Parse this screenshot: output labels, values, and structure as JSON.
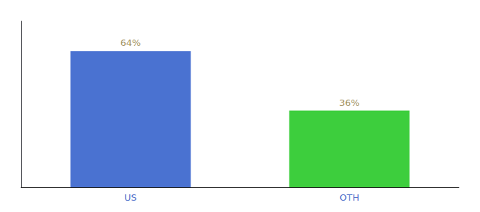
{
  "chart_data": {
    "type": "bar",
    "categories": [
      "US",
      "OTH"
    ],
    "values": [
      64,
      36
    ],
    "colors": [
      "#4a72d1",
      "#3dce3d"
    ],
    "value_labels": [
      "64%",
      "36%"
    ],
    "data_labels": true,
    "ylim": [
      0,
      78
    ],
    "grid": false,
    "tick_labels": "x"
  }
}
